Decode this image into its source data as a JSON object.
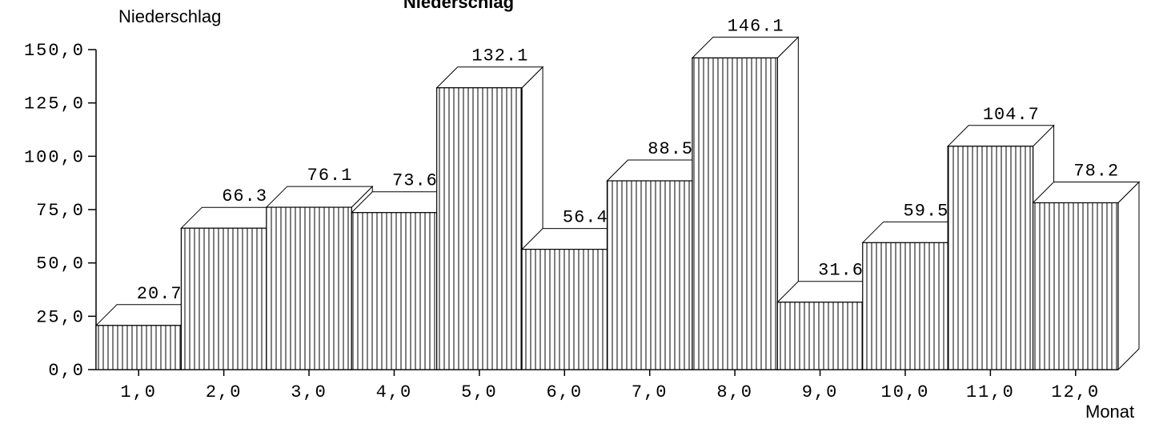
{
  "chart_data": {
    "type": "bar",
    "title": "Niederschlag",
    "ylabel": "Niederschlag",
    "xlabel": "Monat",
    "categories": [
      "1,0",
      "2,0",
      "3,0",
      "4,0",
      "5,0",
      "6,0",
      "7,0",
      "8,0",
      "9,0",
      "10,0",
      "11,0",
      "12,0"
    ],
    "values": [
      20.7,
      66.3,
      76.1,
      73.6,
      132.1,
      56.4,
      88.5,
      146.1,
      31.6,
      59.5,
      104.7,
      78.2
    ],
    "value_labels": [
      "20.7",
      "66.3",
      "76.1",
      "73.6",
      "132.1",
      "56.4",
      "88.5",
      "146.1",
      "31.6",
      "59.5",
      "104.7",
      "78.2"
    ],
    "yticks": [
      "0,0",
      "25,0",
      "50,0",
      "75,0",
      "100,0",
      "125,0",
      "150,0"
    ],
    "ytick_values": [
      0,
      25,
      50,
      75,
      100,
      125,
      150
    ],
    "ylim": [
      0,
      150
    ],
    "grid": false,
    "style": "3d-bars-vertical-hatch",
    "colors": {
      "bar_fill": "#ffffff",
      "stroke": "#000000"
    }
  }
}
